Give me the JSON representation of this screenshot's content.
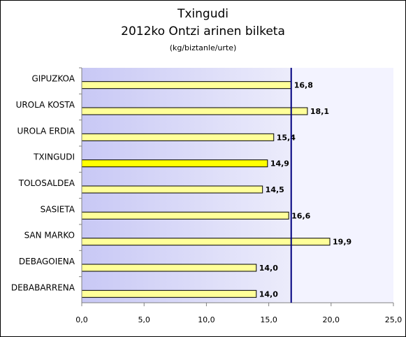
{
  "chart_data": {
    "type": "bar",
    "orientation": "horizontal",
    "title": "Txingudi",
    "subtitle": "2012ko Ontzi arinen bilketa",
    "unit_label": "(kg/biztanle/urte)",
    "categories": [
      "GIPUZKOA",
      "UROLA KOSTA",
      "UROLA ERDIA",
      "TXINGUDI",
      "TOLOSALDEA",
      "SASIETA",
      "SAN MARKO",
      "DEBAGOIENA",
      "DEBABARRENA"
    ],
    "values": [
      16.8,
      18.1,
      15.4,
      14.9,
      14.5,
      16.6,
      19.9,
      14.0,
      14.0
    ],
    "value_labels": [
      "16,8",
      "18,1",
      "15,4",
      "14,9",
      "14,5",
      "16,6",
      "19,9",
      "14,0",
      "14,0"
    ],
    "highlight_category": "TXINGUDI",
    "reference_value": 16.8,
    "xlim": [
      0,
      25
    ],
    "x_ticks": [
      0,
      5,
      10,
      15,
      20,
      25
    ],
    "x_tick_labels": [
      "0,0",
      "5,0",
      "10,0",
      "15,0",
      "20,0",
      "25,0"
    ],
    "grid": false,
    "colors": {
      "bar": "#ffff99",
      "bar_highlight": "#ffff00",
      "bar_edge": "#000000",
      "shade_left": "#c8c8f5",
      "shade_right": "#f3f3ff",
      "reference_line": "#000080",
      "axis": "#808080"
    }
  }
}
